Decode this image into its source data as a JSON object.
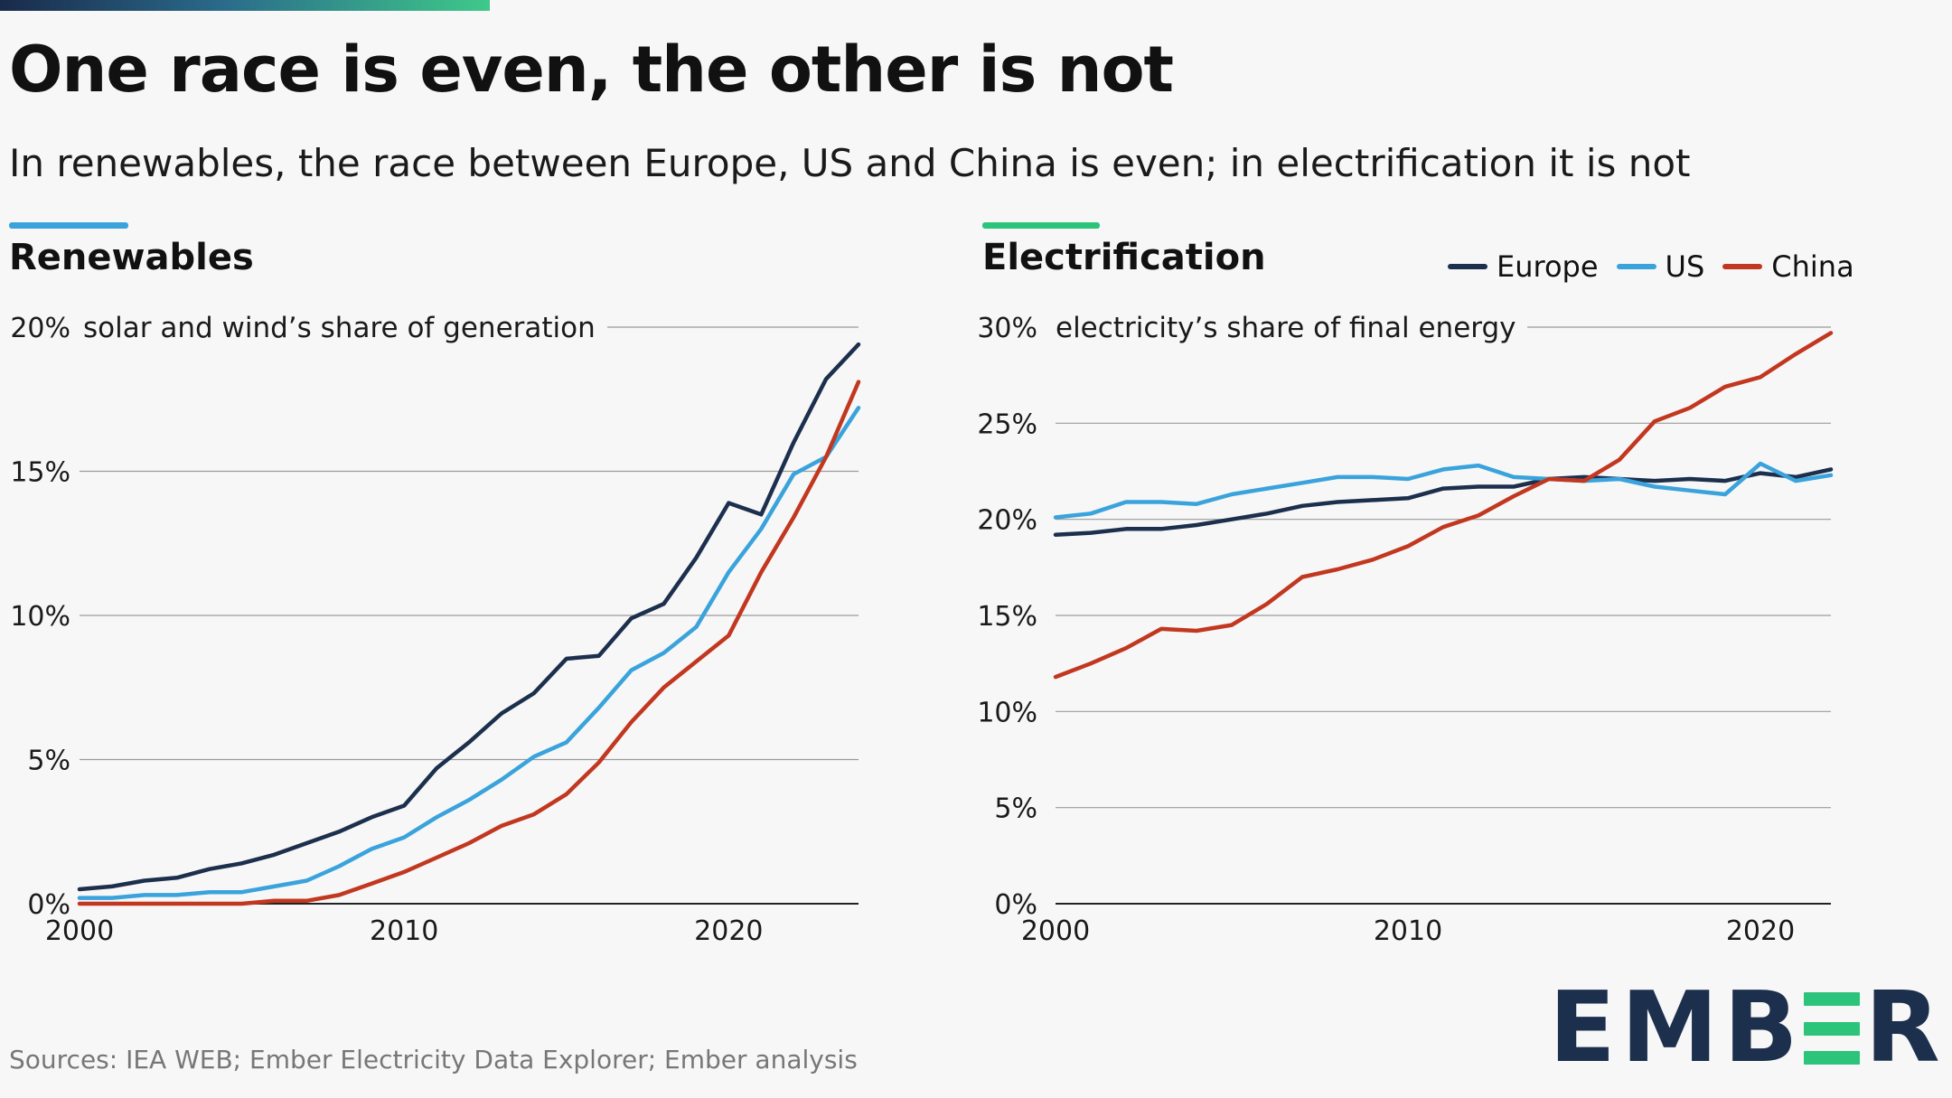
{
  "header": {
    "title": "One race is even, the other is not",
    "subtitle": "In renewables, the race between Europe, US and China is even; in electrification it is not"
  },
  "colors": {
    "europe": "#1c2f4d",
    "us": "#3aa3dc",
    "china": "#c2371f",
    "renewables_accent": "#3aa3dc",
    "electrification_accent": "#2bc47a"
  },
  "legend": {
    "items": [
      {
        "label": "Europe",
        "color": "#1c2f4d"
      },
      {
        "label": "US",
        "color": "#3aa3dc"
      },
      {
        "label": "China",
        "color": "#c2371f"
      }
    ]
  },
  "chart_data": [
    {
      "type": "line",
      "title": "Renewables",
      "ylabel": "solar and wind’s share of generation",
      "xlabel": "",
      "xlim": [
        2000,
        2024
      ],
      "ylim": [
        0,
        20
      ],
      "y_ticks": [
        0,
        5,
        10,
        15,
        20
      ],
      "y_tick_labels": [
        "0%",
        "5%",
        "10%",
        "15%",
        "20%"
      ],
      "x_ticks": [
        2000,
        2010,
        2020
      ],
      "x_tick_labels": [
        "2000",
        "2010",
        "2020"
      ],
      "grid": true,
      "x": [
        2000,
        2001,
        2002,
        2003,
        2004,
        2005,
        2006,
        2007,
        2008,
        2009,
        2010,
        2011,
        2012,
        2013,
        2014,
        2015,
        2016,
        2017,
        2018,
        2019,
        2020,
        2021,
        2022,
        2023,
        2024
      ],
      "series": [
        {
          "name": "Europe",
          "values": [
            0.5,
            0.6,
            0.8,
            0.9,
            1.2,
            1.4,
            1.7,
            2.1,
            2.5,
            3.0,
            3.4,
            4.7,
            5.6,
            6.6,
            7.3,
            8.5,
            8.6,
            9.9,
            10.4,
            12.0,
            13.9,
            13.5,
            16.0,
            18.2,
            19.4
          ]
        },
        {
          "name": "US",
          "values": [
            0.2,
            0.2,
            0.3,
            0.3,
            0.4,
            0.4,
            0.6,
            0.8,
            1.3,
            1.9,
            2.3,
            3.0,
            3.6,
            4.3,
            5.1,
            5.6,
            6.8,
            8.1,
            8.7,
            9.6,
            11.5,
            13.0,
            14.9,
            15.5,
            17.2
          ]
        },
        {
          "name": "China",
          "values": [
            0.0,
            0.0,
            0.0,
            0.0,
            0.0,
            0.0,
            0.1,
            0.1,
            0.3,
            0.7,
            1.1,
            1.6,
            2.1,
            2.7,
            3.1,
            3.8,
            4.9,
            6.3,
            7.5,
            8.4,
            9.3,
            11.5,
            13.4,
            15.5,
            18.1
          ]
        }
      ]
    },
    {
      "type": "line",
      "title": "Electrification",
      "ylabel": "electricity’s share of final energy",
      "xlabel": "",
      "xlim": [
        2000,
        2022
      ],
      "ylim": [
        0,
        30
      ],
      "y_ticks": [
        0,
        5,
        10,
        15,
        20,
        25,
        30
      ],
      "y_tick_labels": [
        "0%",
        "5%",
        "10%",
        "15%",
        "20%",
        "25%",
        "30%"
      ],
      "x_ticks": [
        2000,
        2010,
        2020
      ],
      "x_tick_labels": [
        "2000",
        "2010",
        "2020"
      ],
      "grid": true,
      "legend_position": "top-right",
      "x": [
        2000,
        2001,
        2002,
        2003,
        2004,
        2005,
        2006,
        2007,
        2008,
        2009,
        2010,
        2011,
        2012,
        2013,
        2014,
        2015,
        2016,
        2017,
        2018,
        2019,
        2020,
        2021,
        2022
      ],
      "series": [
        {
          "name": "Europe",
          "values": [
            19.2,
            19.3,
            19.5,
            19.5,
            19.7,
            20.0,
            20.3,
            20.7,
            20.9,
            21.0,
            21.1,
            21.6,
            21.7,
            21.7,
            22.1,
            22.2,
            22.1,
            22.0,
            22.1,
            22.0,
            22.4,
            22.2,
            22.6
          ]
        },
        {
          "name": "US",
          "values": [
            20.1,
            20.3,
            20.9,
            20.9,
            20.8,
            21.3,
            21.6,
            21.9,
            22.2,
            22.2,
            22.1,
            22.6,
            22.8,
            22.2,
            22.1,
            22.0,
            22.1,
            21.7,
            21.5,
            21.3,
            22.9,
            22.0,
            22.3
          ]
        },
        {
          "name": "China",
          "values": [
            11.8,
            12.5,
            13.3,
            14.3,
            14.2,
            14.5,
            15.6,
            17.0,
            17.4,
            17.9,
            18.6,
            19.6,
            20.2,
            21.2,
            22.1,
            22.0,
            23.1,
            25.1,
            25.8,
            26.9,
            27.4,
            28.6,
            29.7
          ]
        }
      ]
    }
  ],
  "footer": {
    "source": "Sources: IEA WEB; Ember Electricity Data Explorer; Ember analysis",
    "logo_text": "EMBER"
  }
}
